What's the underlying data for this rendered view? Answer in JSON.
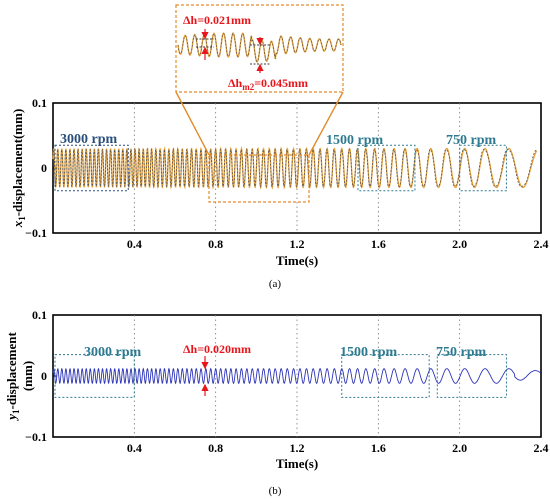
{
  "chart_data": [
    {
      "type": "line",
      "panel_label": "(a)",
      "xlabel": "Time(s)",
      "ylabel_var": "x",
      "ylabel_sub": "1",
      "ylabel_rest": "-displacement(mm)",
      "xlim": [
        0,
        2.4
      ],
      "ylim": [
        -0.1,
        0.1
      ],
      "xticks": [
        "0.4",
        "0.8",
        "1.2",
        "1.6",
        "2.0",
        "2.4"
      ],
      "yticks": [
        "0.1",
        "0",
        "−0.1"
      ],
      "grid": "dotted vertical",
      "series": [
        {
          "style": "solid",
          "color": "#e8a23a",
          "amplitude_mm": 0.03
        },
        {
          "style": "dashed",
          "color": "#555555",
          "amplitude_mm": 0.03
        }
      ],
      "speed_segments": [
        {
          "label": "3000 rpm",
          "t_start": 0.0,
          "t_end": 0.37
        },
        {
          "label": "1500 rpm",
          "t_start": 1.5,
          "t_end": 1.78
        },
        {
          "label": "750 rpm",
          "t_start": 2.0,
          "t_end": 2.23
        }
      ],
      "inset": {
        "t_range": [
          0.78,
          1.27
        ],
        "annotation_1": {
          "symbol": "Δh",
          "value": "=0.021mm"
        },
        "annotation_2": {
          "symbol": "Δh",
          "subscript": "m2",
          "value": "=0.045mm"
        }
      }
    },
    {
      "type": "line",
      "panel_label": "(b)",
      "xlabel": "Time(s)",
      "ylabel_var": "y",
      "ylabel_sub": "1",
      "ylabel_rest": "-displacement",
      "ylabel_unit": "(mm)",
      "xlim": [
        0,
        2.4
      ],
      "ylim": [
        -0.1,
        0.1
      ],
      "xticks": [
        "0.4",
        "0.8",
        "1.2",
        "1.6",
        "2.0",
        "2.4"
      ],
      "yticks": [
        "0.1",
        "0",
        "−0.1"
      ],
      "grid": "dotted vertical",
      "series": [
        {
          "style": "solid",
          "color": "#2d34b8",
          "amplitude_mm": 0.012
        }
      ],
      "speed_segments": [
        {
          "label": "3000 rpm",
          "t_start": 0.0,
          "t_end": 0.4
        },
        {
          "label": "1500 rpm",
          "t_start": 1.42,
          "t_end": 1.85
        },
        {
          "label": "750 rpm",
          "t_start": 1.89,
          "t_end": 2.23
        }
      ],
      "annotation": {
        "symbol": "Δh",
        "value": "=0.020mm",
        "t": 0.69
      }
    }
  ]
}
